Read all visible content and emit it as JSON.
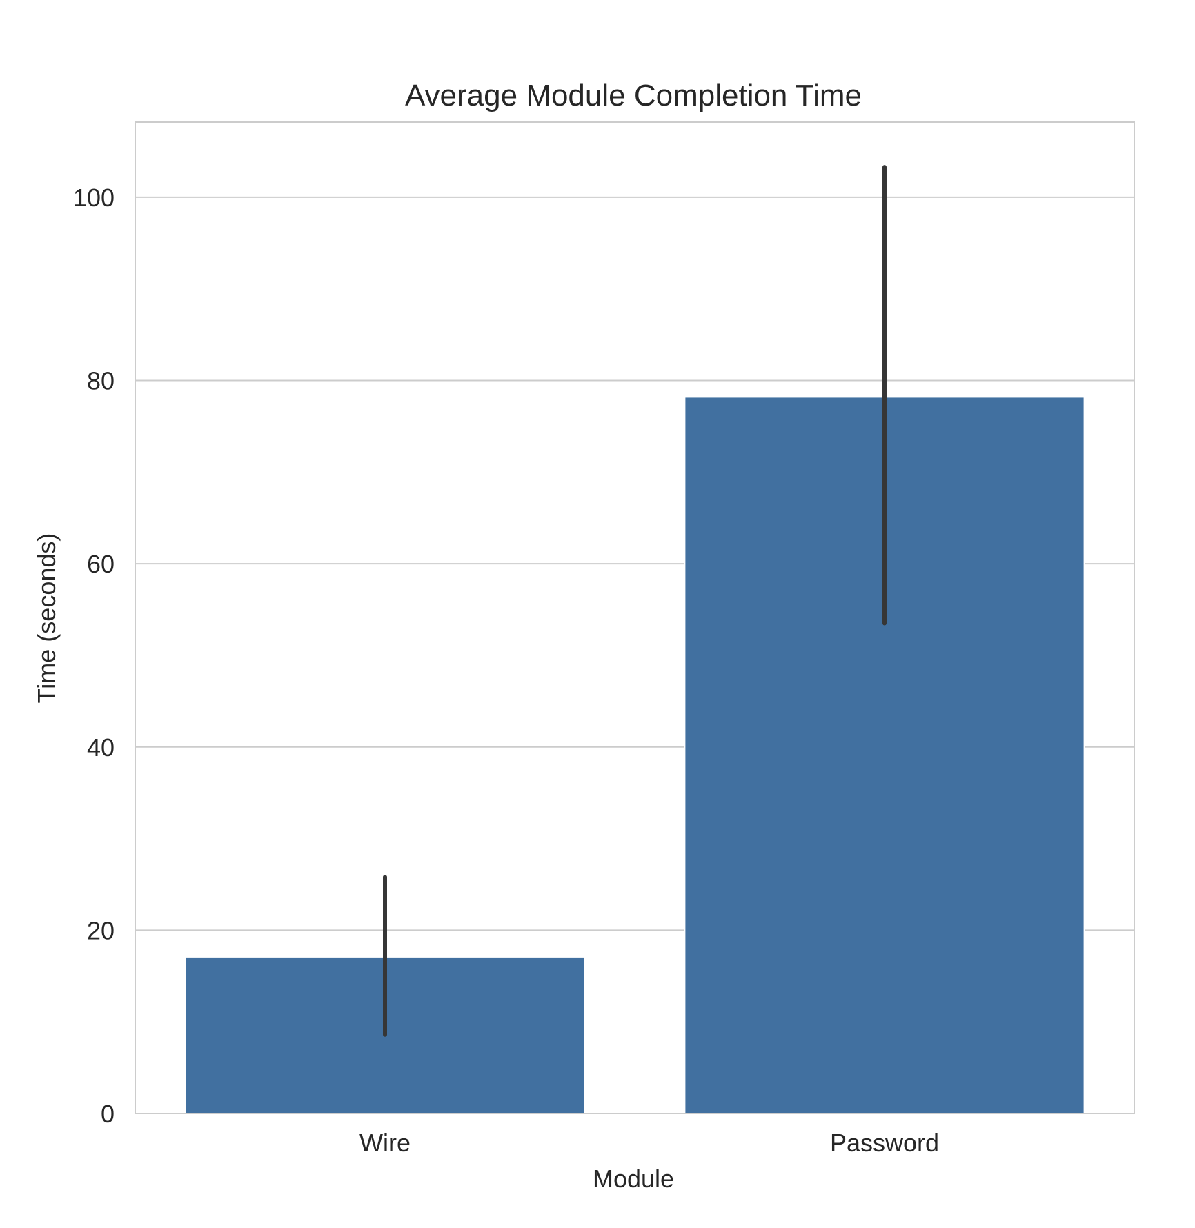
{
  "chart_data": {
    "type": "bar",
    "title": "Average Module Completion Time",
    "xlabel": "Module",
    "ylabel": "Time (seconds)",
    "categories": [
      "Wire",
      "Password"
    ],
    "series": [
      {
        "values": [
          17.1,
          78.2
        ],
        "error_low": [
          8.6,
          53.5
        ],
        "error_high": [
          25.8,
          103.3
        ]
      }
    ],
    "ylim": [
      0,
      108.2
    ],
    "yticks": [
      0,
      20,
      40,
      60,
      80,
      100
    ],
    "grid": "y",
    "legend": "none",
    "colors": {
      "bar": "#4170A0",
      "error_bar": "#363636",
      "grid": "#CCCCCC",
      "frame": "#CCCCCC",
      "text": "#262626"
    }
  }
}
